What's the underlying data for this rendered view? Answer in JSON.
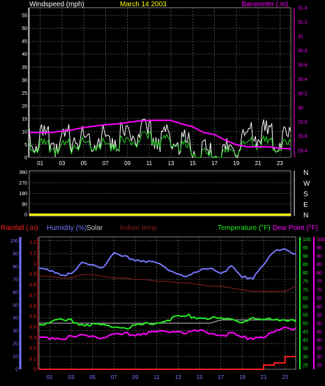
{
  "colors": {
    "background": "#000000",
    "grid": "#6a6a6a",
    "wind_axis": "#ffffff",
    "wind": "#ffffff",
    "gust": "#22dd22",
    "barometer": "#ff00ff",
    "dir_axis": "#ffffff",
    "wind_dir": "#ffff00",
    "rainfall": "#ff2020",
    "humidity": "#7777ff",
    "solar": "#cccccc",
    "indoor": "#8b2020",
    "temperature": "#22ee22",
    "dewpoint": "#ff00ff",
    "date": "#ffff00"
  },
  "chart_data": [
    {
      "type": "line",
      "title": "March 14 2003",
      "x": [
        0,
        1,
        2,
        3,
        4,
        5,
        6,
        7,
        8,
        9,
        10,
        11,
        12,
        13,
        14,
        15,
        16,
        17,
        18,
        19,
        20,
        21,
        22,
        23,
        24
      ],
      "x_ticks": [
        "01",
        "03",
        "05",
        "07",
        "09",
        "11",
        "13",
        "15",
        "17",
        "19",
        "21",
        "23"
      ],
      "x_tick_hours": [
        1,
        3,
        5,
        7,
        9,
        11,
        13,
        15,
        17,
        19,
        21,
        23
      ],
      "left_axis": {
        "label": "Windspeed (mph)",
        "range": [
          0,
          58
        ],
        "ticks": [
          "0",
          "5",
          "10",
          "15",
          "20",
          "25",
          "30",
          "35",
          "40",
          "45",
          "50",
          "55"
        ],
        "tick_values": [
          0,
          5,
          10,
          15,
          20,
          25,
          30,
          35,
          40,
          45,
          50,
          55
        ]
      },
      "right_axis": {
        "label": "Barometer (.in)",
        "range": [
          29.3,
          31.4
        ],
        "ticks": [
          "29.4",
          "29.6",
          "29.8",
          "30",
          "30.2",
          "30.4",
          "30.6",
          "30.8",
          "31",
          "31.2",
          "31.4"
        ],
        "tick_values": [
          29.4,
          29.6,
          29.8,
          30,
          30.2,
          30.4,
          30.6,
          30.8,
          31,
          31.2,
          31.4
        ]
      },
      "series": [
        {
          "key": "wind",
          "axis": "left",
          "values": [
            11,
            10,
            9,
            8,
            11,
            10,
            11,
            10,
            11,
            11,
            12,
            12,
            11,
            11,
            9,
            7,
            4,
            4,
            5,
            8,
            10,
            12,
            12,
            10,
            10
          ]
        },
        {
          "key": "gust",
          "axis": "left",
          "values": [
            6,
            6,
            5,
            5,
            6,
            7,
            7,
            6,
            7,
            7,
            8,
            9,
            8,
            8,
            6,
            4,
            2,
            2,
            3,
            5,
            6,
            7,
            7,
            6,
            6
          ]
        },
        {
          "key": "barometer",
          "axis": "right",
          "values": [
            29.65,
            29.65,
            29.65,
            29.67,
            29.69,
            29.72,
            29.74,
            29.76,
            29.77,
            29.79,
            29.81,
            29.82,
            29.82,
            29.82,
            29.77,
            29.73,
            29.65,
            29.62,
            29.54,
            29.48,
            29.45,
            29.45,
            29.45,
            29.43,
            29.42
          ]
        }
      ]
    },
    {
      "type": "line",
      "title": "",
      "x": [
        0,
        24
      ],
      "x_ticks": [],
      "left_axis": {
        "label": "",
        "range": [
          0,
          360
        ],
        "ticks": [
          "0",
          "90",
          "180",
          "270",
          "360"
        ],
        "tick_values": [
          0,
          90,
          180,
          270,
          360
        ]
      },
      "right_axis": {
        "label": "",
        "range": [
          0,
          360
        ],
        "ticks": [
          "N",
          "E",
          "S",
          "W",
          "N"
        ],
        "tick_values": [
          0,
          90,
          180,
          270,
          360
        ]
      },
      "series": [
        {
          "key": "wind_dir",
          "axis": "left",
          "values": [
            0,
            0
          ]
        }
      ]
    },
    {
      "type": "line",
      "title": "",
      "x": [
        0,
        1,
        2,
        3,
        4,
        5,
        6,
        7,
        8,
        9,
        10,
        11,
        12,
        13,
        14,
        15,
        16,
        17,
        18,
        19,
        20,
        21,
        22,
        23,
        24
      ],
      "x_ticks": [
        "01",
        "03",
        "05",
        "07",
        "09",
        "11",
        "13",
        "15",
        "17",
        "19",
        "21",
        "23"
      ],
      "x_tick_hours": [
        1,
        3,
        5,
        7,
        9,
        11,
        13,
        15,
        17,
        19,
        21,
        23
      ],
      "legend_labels": {
        "rainfall": "Rainfall (.in)",
        "humidity": "Humidity (%)",
        "solar": "Solar",
        "indoor": "Indoor temp",
        "temperature": "Temperature (°F)",
        "dewpoint": "Dew Point (°F)"
      },
      "rain_axis": {
        "range": [
          0,
          1.25
        ],
        "ticks": [
          "0",
          "0.1",
          "0.2",
          "0.3",
          "0.4",
          "0.5",
          "0.6",
          "0.7",
          "0.8",
          "0.9",
          "1",
          "1.1",
          "1.2"
        ],
        "tick_values": [
          0,
          0.1,
          0.2,
          0.3,
          0.4,
          0.5,
          0.6,
          0.7,
          0.8,
          0.9,
          1,
          1.1,
          1.2
        ]
      },
      "humidity_axis": {
        "range": [
          0,
          103
        ],
        "ticks": [
          "0",
          "10",
          "20",
          "30",
          "40",
          "50",
          "60",
          "70",
          "80",
          "90",
          "100"
        ],
        "tick_values": [
          0,
          10,
          20,
          30,
          40,
          50,
          60,
          70,
          80,
          90,
          100
        ]
      },
      "temp_axis": {
        "range": [
          22.5,
          101.5
        ],
        "ticks": [
          "25",
          "30",
          "35",
          "40",
          "45",
          "50",
          "55",
          "60",
          "65",
          "70",
          "75",
          "80",
          "85",
          "90",
          "95",
          "100"
        ],
        "tick_values": [
          25,
          30,
          35,
          40,
          45,
          50,
          55,
          60,
          65,
          70,
          75,
          80,
          85,
          90,
          95,
          100
        ]
      },
      "series": [
        {
          "key": "rainfall",
          "axis": "rain",
          "values": [
            0,
            0,
            0,
            0,
            0,
            0,
            0,
            0,
            0,
            0,
            0,
            0,
            0,
            0,
            0,
            0,
            0,
            0,
            0,
            0,
            0,
            0.04,
            0.06,
            0.12,
            0.12
          ]
        },
        {
          "key": "humidity",
          "axis": "humidity",
          "values": [
            79,
            78,
            75,
            74,
            83,
            82,
            80,
            90,
            88,
            86,
            85,
            83,
            79,
            75,
            73,
            77,
            80,
            76,
            80,
            72,
            72,
            83,
            92,
            94,
            90
          ]
        },
        {
          "key": "indoor",
          "axis": "temp",
          "values": [
            78,
            78,
            77,
            77,
            79,
            79,
            78,
            77,
            77,
            76,
            76,
            75,
            75,
            74,
            74,
            73,
            72,
            72,
            71,
            70,
            69,
            69,
            69,
            69,
            72
          ]
        },
        {
          "key": "solar",
          "axis": "temp",
          "values": [
            50,
            50,
            50,
            50,
            50,
            50,
            50,
            50,
            50,
            50,
            50,
            50,
            50,
            50,
            50,
            50,
            50,
            52,
            52,
            52,
            52,
            52,
            52,
            52,
            52
          ]
        },
        {
          "key": "temperature",
          "axis": "temp",
          "values": [
            50,
            51,
            52,
            52,
            50,
            50,
            49,
            49,
            48,
            49,
            50,
            51,
            53,
            54,
            55,
            54,
            54,
            53,
            53,
            52,
            53,
            52,
            53,
            53,
            51
          ]
        },
        {
          "key": "dewpoint",
          "axis": "temp",
          "values": [
            42,
            42,
            42,
            42,
            43,
            43,
            42,
            43,
            44,
            44,
            45,
            45,
            46,
            46,
            45,
            46,
            45,
            44,
            44,
            42,
            42,
            43,
            45,
            48,
            47
          ]
        }
      ]
    }
  ]
}
